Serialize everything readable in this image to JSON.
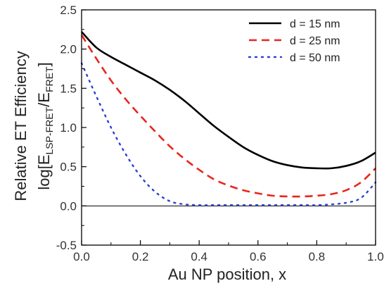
{
  "chart_data": {
    "type": "line",
    "xlabel": "Au NP position, x",
    "ylabel": [
      "Relative ET Efficiency",
      "log[E",
      "LSP-FRET",
      "/E",
      "FRET",
      "]"
    ],
    "xlim": [
      0.0,
      1.0
    ],
    "ylim": [
      -0.5,
      2.5
    ],
    "xticks": [
      0.0,
      0.2,
      0.4,
      0.6,
      0.8,
      1.0
    ],
    "xtick_labels": [
      "0.0",
      "0.2",
      "0.4",
      "0.6",
      "0.8",
      "1.0"
    ],
    "yticks": [
      -0.5,
      0.0,
      0.5,
      1.0,
      1.5,
      2.0,
      2.5
    ],
    "ytick_labels": [
      "-0.5",
      "0.0",
      "0.5",
      "1.0",
      "1.5",
      "2.0",
      "2.5"
    ],
    "zero_line": true,
    "grid": false,
    "legend_position": "top-right",
    "x": [
      0.0,
      0.05,
      0.1,
      0.15,
      0.2,
      0.25,
      0.3,
      0.35,
      0.4,
      0.45,
      0.5,
      0.55,
      0.6,
      0.65,
      0.7,
      0.75,
      0.8,
      0.85,
      0.9,
      0.95,
      1.0
    ],
    "series": [
      {
        "name": "d = 15 nm",
        "style": "solid",
        "color": "#000000",
        "values": [
          2.22,
          2.02,
          1.9,
          1.8,
          1.7,
          1.6,
          1.48,
          1.34,
          1.18,
          1.02,
          0.88,
          0.75,
          0.65,
          0.57,
          0.52,
          0.49,
          0.48,
          0.48,
          0.51,
          0.57,
          0.68
        ]
      },
      {
        "name": "d = 25 nm",
        "style": "dashed",
        "color": "#e8261e",
        "values": [
          2.18,
          1.88,
          1.6,
          1.36,
          1.15,
          0.95,
          0.76,
          0.6,
          0.46,
          0.34,
          0.26,
          0.2,
          0.16,
          0.13,
          0.12,
          0.12,
          0.13,
          0.15,
          0.2,
          0.3,
          0.48
        ]
      },
      {
        "name": "d = 50 nm",
        "style": "dotted",
        "color": "#2a3fd0",
        "values": [
          1.82,
          1.4,
          1.0,
          0.66,
          0.38,
          0.18,
          0.06,
          0.02,
          0.01,
          0.01,
          0.01,
          0.01,
          0.01,
          0.01,
          0.01,
          0.01,
          0.01,
          0.02,
          0.04,
          0.1,
          0.3
        ]
      }
    ]
  }
}
